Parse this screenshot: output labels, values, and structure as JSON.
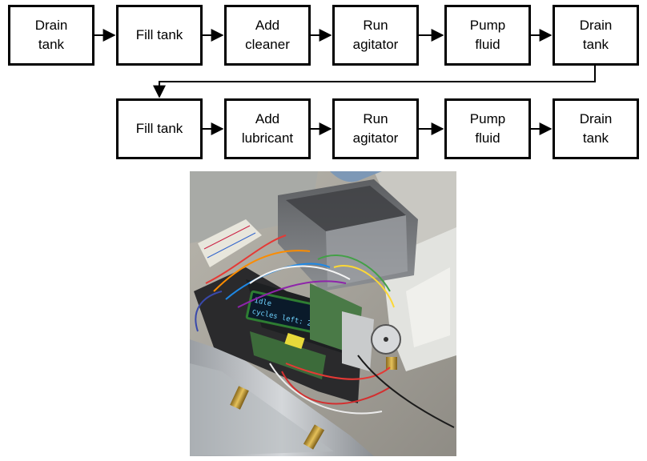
{
  "flowchart": {
    "row1": [
      {
        "label": "Drain\ntank"
      },
      {
        "label": "Fill tank"
      },
      {
        "label": "Add\ncleaner"
      },
      {
        "label": "Run\nagitator"
      },
      {
        "label": "Pump\nfluid"
      },
      {
        "label": "Drain\ntank"
      }
    ],
    "row2": [
      {
        "label": "Fill tank"
      },
      {
        "label": "Add\nlubricant"
      },
      {
        "label": "Run\nagitator"
      },
      {
        "label": "Pump\nfluid"
      },
      {
        "label": "Drain\ntank"
      }
    ]
  },
  "photo": {
    "lcd_line1": "Idle",
    "lcd_line2": "cycles left: 234"
  }
}
